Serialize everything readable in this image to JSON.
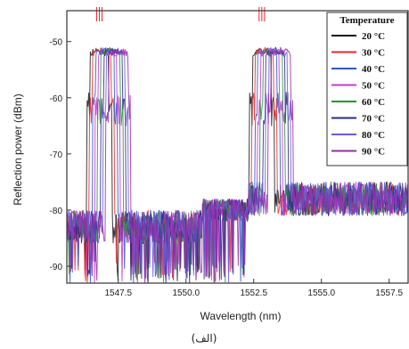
{
  "chart_data": {
    "type": "line",
    "xlabel": "Wavelength (nm)",
    "ylabel": "Reflection power (dBm)",
    "xlim": [
      1545.6,
      1558.2
    ],
    "ylim": [
      -93,
      -44.5
    ],
    "xticks": [
      1547.5,
      1550.0,
      1552.5,
      1555.0,
      1557.5
    ],
    "xtick_labels": [
      "1547.5",
      "1550.0",
      "1552.5",
      "1555.0",
      "1557.5"
    ],
    "yticks": [
      -50,
      -60,
      -70,
      -80,
      -90
    ],
    "ytick_labels": [
      "-50",
      "-60",
      "-70",
      "-80",
      "-90"
    ],
    "legend": {
      "title": "Temperature",
      "placement": "top-right",
      "entries": [
        "20 °C",
        "30 °C",
        "40 °C",
        "50 °C",
        "60 °C",
        "70 °C",
        "80 °C",
        "90 °C"
      ]
    },
    "colors": [
      "#1a1a1a",
      "#e8262d",
      "#2f55c9",
      "#c43bd1",
      "#2e8f3a",
      "#2a2a8a",
      "#6a5ad8",
      "#9a2aa8"
    ],
    "peaks": {
      "peak1_center_20C": 1546.8,
      "peak2_center_20C": 1552.8,
      "shift_per_10C_nm": 0.1,
      "peak_top_dBm": -51,
      "peak_width_nm": 0.7
    },
    "noise_floor_dBm": -77,
    "caption": "(الف)"
  }
}
